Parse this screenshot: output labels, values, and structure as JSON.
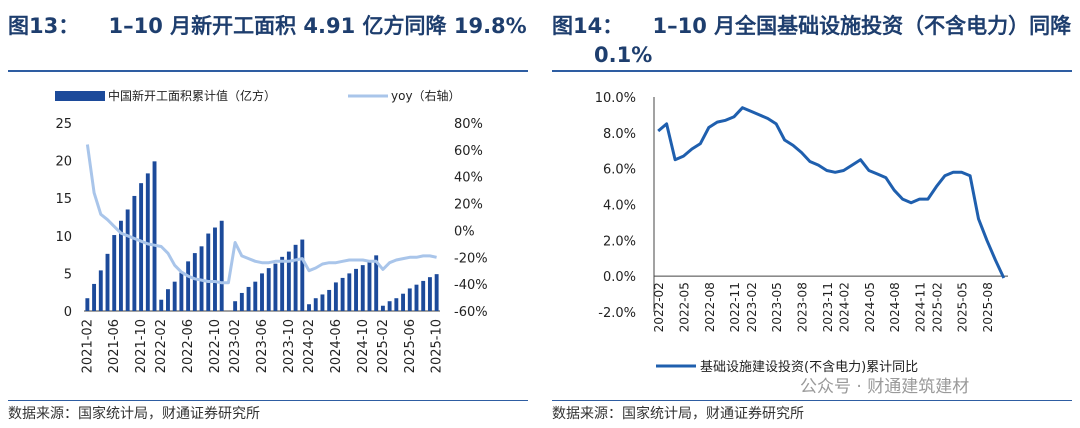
{
  "left": {
    "title": "图13：    1–10 月新开工面积 4.91 亿方同降 19.8%",
    "source": "数据来源：国家统计局，财通证券研究所"
  },
  "right": {
    "title_line1": "图14：    1–10 月全国基础设施投资（不含电力）同降",
    "title_line2": "0.1%",
    "source": "数据来源：国家统计局，财通证券研究所"
  },
  "watermark": "公众号 · 财通建筑建材",
  "colors": {
    "bar": "#1c4a9a",
    "yoy_line": "#a9c5ea",
    "infra_line": "#1f5fae",
    "title": "#1e3e6e"
  },
  "chart_data": [
    {
      "type": "bar",
      "title": "图13：1–10 月新开工面积 4.91 亿方同降 19.8%",
      "categories": [
        "2021-02",
        "2021-03",
        "2021-04",
        "2021-05",
        "2021-06",
        "2021-07",
        "2021-08",
        "2021-09",
        "2021-10",
        "2021-11",
        "2021-12",
        "2022-02",
        "2022-03",
        "2022-04",
        "2022-05",
        "2022-06",
        "2022-07",
        "2022-08",
        "2022-09",
        "2022-10",
        "2022-11",
        "2022-12",
        "2023-02",
        "2023-03",
        "2023-04",
        "2023-05",
        "2023-06",
        "2023-07",
        "2023-08",
        "2023-09",
        "2023-10",
        "2023-11",
        "2023-12",
        "2024-02",
        "2024-03",
        "2024-04",
        "2024-05",
        "2024-06",
        "2024-07",
        "2024-08",
        "2024-09",
        "2024-10",
        "2024-11",
        "2024-12",
        "2025-02",
        "2025-03",
        "2025-04",
        "2025-05",
        "2025-06",
        "2025-07",
        "2025-08",
        "2025-09",
        "2025-10"
      ],
      "tick_labels": [
        "2021-02",
        "2021-06",
        "2021-10",
        "2022-02",
        "2022-06",
        "2022-10",
        "2023-02",
        "2023-06",
        "2023-10",
        "2024-02",
        "2024-06",
        "2024-10",
        "2025-02",
        "2025-06",
        "2025-10"
      ],
      "series": [
        {
          "name": "中国新开工面积累计值（亿方）",
          "axis": "left",
          "values": [
            1.7,
            3.6,
            5.4,
            7.6,
            10.1,
            12.0,
            13.5,
            15.3,
            17.0,
            18.3,
            19.9,
            1.5,
            2.9,
            3.9,
            5.1,
            6.6,
            7.7,
            8.6,
            10.3,
            11.1,
            12.0,
            null,
            1.3,
            2.4,
            3.2,
            3.9,
            5.0,
            5.7,
            6.3,
            7.2,
            7.9,
            8.8,
            9.5,
            0.9,
            1.7,
            2.2,
            2.8,
            3.8,
            4.4,
            5.0,
            5.6,
            6.1,
            6.7,
            7.4,
            0.7,
            1.3,
            1.7,
            2.3,
            3.0,
            3.5,
            4.0,
            4.5,
            4.9
          ]
        },
        {
          "name": "yoy（右轴）",
          "axis": "right",
          "type": "line",
          "values": [
            64,
            28,
            12,
            8,
            3,
            -2,
            -4,
            -6,
            -8,
            -10,
            -11,
            -12,
            -17,
            -26,
            -31,
            -34,
            -36,
            -37,
            -38,
            -38,
            -39,
            -39,
            -9,
            -19,
            -21,
            -23,
            -24,
            -24,
            -23,
            -23,
            -23,
            -22,
            -21,
            -30,
            -28,
            -25,
            -24,
            -24,
            -23,
            -22,
            -22,
            -22,
            -23,
            -23,
            -29,
            -24,
            -22,
            -21,
            -20,
            -20,
            -19,
            -19,
            -20
          ]
        }
      ],
      "ylim": [
        0,
        25
      ],
      "yticks": [
        0,
        5,
        10,
        15,
        20,
        25
      ],
      "y2lim": [
        -60,
        80
      ],
      "y2ticks": [
        "-60%",
        "-40%",
        "-20%",
        "0%",
        "20%",
        "40%",
        "60%",
        "80%"
      ],
      "legend_position": "top"
    },
    {
      "type": "line",
      "title": "图14：1–10 月全国基础设施投资（不含电力）同降 0.1%",
      "series": [
        {
          "name": "基础设施建设投资(不含电力)累计同比",
          "x": [
            "2022-02",
            "2022-03",
            "2022-04",
            "2022-05",
            "2022-06",
            "2022-07",
            "2022-08",
            "2022-09",
            "2022-10",
            "2022-11",
            "2022-12",
            "2023-02",
            "2023-03",
            "2023-04",
            "2023-05",
            "2023-06",
            "2023-07",
            "2023-08",
            "2023-09",
            "2023-10",
            "2023-11",
            "2023-12",
            "2024-02",
            "2024-03",
            "2024-04",
            "2024-05",
            "2024-06",
            "2024-07",
            "2024-08",
            "2024-09",
            "2024-10",
            "2024-11",
            "2024-12",
            "2025-02",
            "2025-03",
            "2025-04",
            "2025-05",
            "2025-06",
            "2025-07",
            "2025-08",
            "2025-09",
            "2025-10"
          ],
          "values": [
            8.1,
            8.5,
            6.5,
            6.7,
            7.1,
            7.4,
            8.3,
            8.6,
            8.7,
            8.9,
            9.4,
            9.2,
            9.0,
            8.8,
            8.5,
            7.6,
            7.3,
            6.9,
            6.4,
            6.2,
            5.9,
            5.8,
            5.9,
            6.2,
            6.5,
            5.9,
            5.7,
            5.5,
            4.8,
            4.3,
            4.1,
            4.3,
            4.3,
            5.0,
            5.6,
            5.8,
            5.8,
            5.6,
            3.2,
            2.0,
            0.9,
            -0.1
          ]
        }
      ],
      "tick_labels": [
        "2022-02",
        "2022-05",
        "2022-08",
        "2022-11",
        "2023-02",
        "2023-05",
        "2023-08",
        "2023-11",
        "2024-02",
        "2024-05",
        "2024-08",
        "2024-11",
        "2025-02",
        "2025-05",
        "2025-08"
      ],
      "ylim": [
        -2,
        10
      ],
      "yticks": [
        "-2.0%",
        "0.0%",
        "2.0%",
        "4.0%",
        "6.0%",
        "8.0%",
        "10.0%"
      ],
      "legend_position": "bottom"
    }
  ]
}
